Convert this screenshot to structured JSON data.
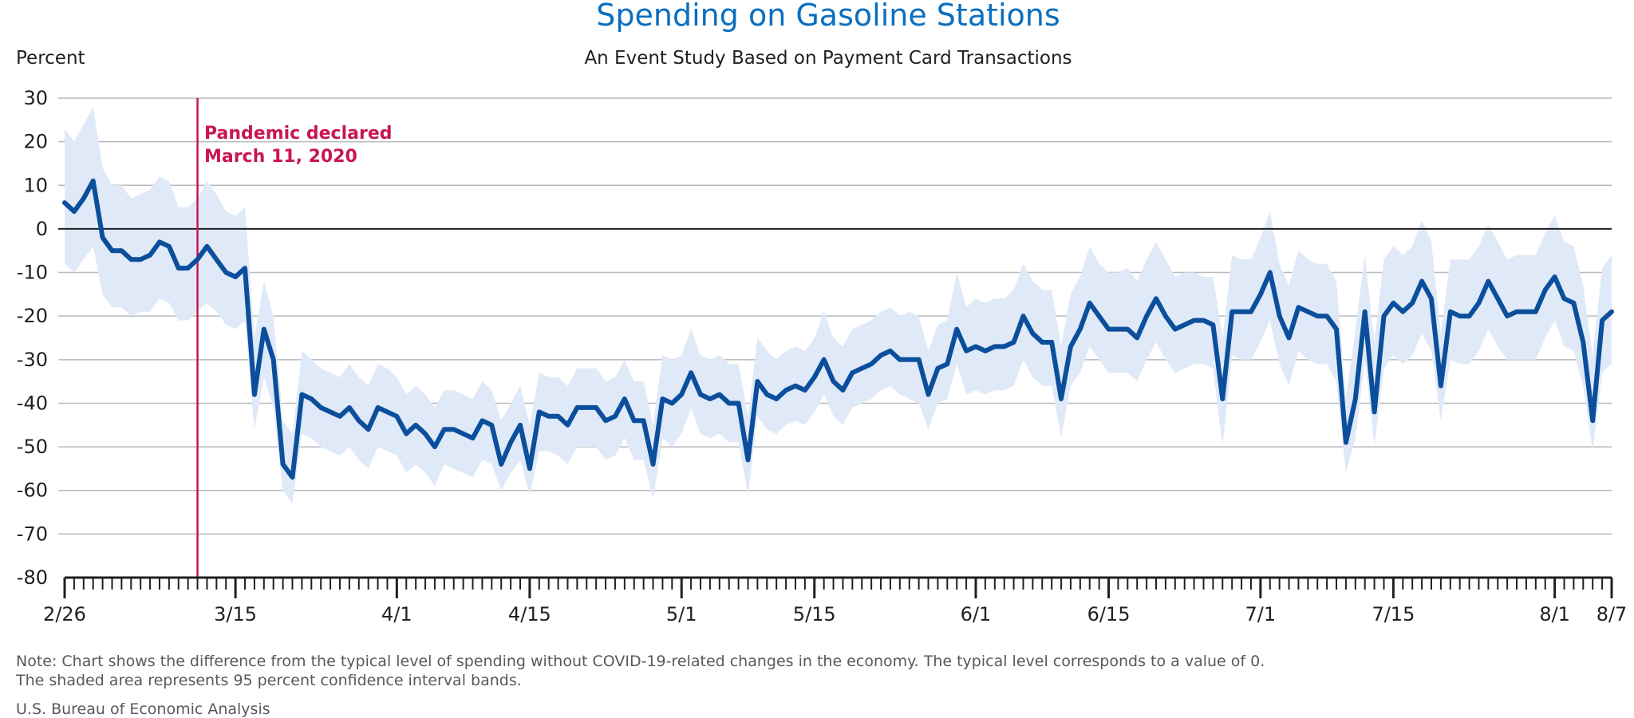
{
  "chart_data": {
    "type": "line",
    "title": "Spending on Gasoline Stations",
    "subtitle": "An Event Study Based on Payment Card Transactions",
    "ylabel": "Percent",
    "xlabel": "",
    "ylim": [
      -80,
      30
    ],
    "yticks": [
      "30",
      "20",
      "10",
      "0",
      "-10",
      "-20",
      "-30",
      "-40",
      "-50",
      "-60",
      "-70",
      "-80"
    ],
    "x_start_date": "2020-02-26",
    "x_end_date": "2020-08-07",
    "x_tick_labels": [
      {
        "date": "2020-02-26",
        "label": "2/26"
      },
      {
        "date": "2020-03-15",
        "label": "3/15"
      },
      {
        "date": "2020-04-01",
        "label": "4/1"
      },
      {
        "date": "2020-04-15",
        "label": "4/15"
      },
      {
        "date": "2020-05-01",
        "label": "5/1"
      },
      {
        "date": "2020-05-15",
        "label": "5/15"
      },
      {
        "date": "2020-06-01",
        "label": "6/1"
      },
      {
        "date": "2020-06-15",
        "label": "6/15"
      },
      {
        "date": "2020-07-01",
        "label": "7/1"
      },
      {
        "date": "2020-07-15",
        "label": "7/15"
      },
      {
        "date": "2020-08-01",
        "label": "8/1"
      },
      {
        "date": "2020-08-07",
        "label": "8/7"
      }
    ],
    "grid": true,
    "zero_line": true,
    "annotation": {
      "date": "2020-03-11",
      "line1": "Pandemic declared",
      "line2": "March 11, 2020",
      "color": "#c8174f"
    },
    "series": [
      {
        "color": "#0b4f9c",
        "values": [
          {
            "date": "2020-02-26",
            "y": 6
          },
          {
            "date": "2020-02-27",
            "y": 4
          },
          {
            "date": "2020-02-28",
            "y": 7
          },
          {
            "date": "2020-02-29",
            "y": 11
          },
          {
            "date": "2020-03-01",
            "y": -2
          },
          {
            "date": "2020-03-02",
            "y": -5
          },
          {
            "date": "2020-03-03",
            "y": -5
          },
          {
            "date": "2020-03-04",
            "y": -7
          },
          {
            "date": "2020-03-05",
            "y": -7
          },
          {
            "date": "2020-03-06",
            "y": -6
          },
          {
            "date": "2020-03-07",
            "y": -3
          },
          {
            "date": "2020-03-08",
            "y": -4
          },
          {
            "date": "2020-03-09",
            "y": -9
          },
          {
            "date": "2020-03-10",
            "y": -9
          },
          {
            "date": "2020-03-11",
            "y": -7
          },
          {
            "date": "2020-03-12",
            "y": -4
          },
          {
            "date": "2020-03-13",
            "y": -7
          },
          {
            "date": "2020-03-14",
            "y": -10
          },
          {
            "date": "2020-03-15",
            "y": -11
          },
          {
            "date": "2020-03-16",
            "y": -9
          },
          {
            "date": "2020-03-17",
            "y": -38
          },
          {
            "date": "2020-03-18",
            "y": -23
          },
          {
            "date": "2020-03-19",
            "y": -30
          },
          {
            "date": "2020-03-20",
            "y": -54
          },
          {
            "date": "2020-03-21",
            "y": -57
          },
          {
            "date": "2020-03-22",
            "y": -38
          },
          {
            "date": "2020-03-23",
            "y": -39
          },
          {
            "date": "2020-03-24",
            "y": -41
          },
          {
            "date": "2020-03-25",
            "y": -42
          },
          {
            "date": "2020-03-26",
            "y": -43
          },
          {
            "date": "2020-03-27",
            "y": -41
          },
          {
            "date": "2020-03-28",
            "y": -44
          },
          {
            "date": "2020-03-29",
            "y": -46
          },
          {
            "date": "2020-03-30",
            "y": -41
          },
          {
            "date": "2020-03-31",
            "y": -42
          },
          {
            "date": "2020-04-01",
            "y": -43
          },
          {
            "date": "2020-04-02",
            "y": -47
          },
          {
            "date": "2020-04-03",
            "y": -45
          },
          {
            "date": "2020-04-04",
            "y": -47
          },
          {
            "date": "2020-04-05",
            "y": -50
          },
          {
            "date": "2020-04-06",
            "y": -46
          },
          {
            "date": "2020-04-07",
            "y": -46
          },
          {
            "date": "2020-04-08",
            "y": -47
          },
          {
            "date": "2020-04-09",
            "y": -48
          },
          {
            "date": "2020-04-10",
            "y": -44
          },
          {
            "date": "2020-04-11",
            "y": -45
          },
          {
            "date": "2020-04-12",
            "y": -54
          },
          {
            "date": "2020-04-13",
            "y": -49
          },
          {
            "date": "2020-04-14",
            "y": -45
          },
          {
            "date": "2020-04-15",
            "y": -55
          },
          {
            "date": "2020-04-16",
            "y": -42
          },
          {
            "date": "2020-04-17",
            "y": -43
          },
          {
            "date": "2020-04-18",
            "y": -43
          },
          {
            "date": "2020-04-19",
            "y": -45
          },
          {
            "date": "2020-04-20",
            "y": -41
          },
          {
            "date": "2020-04-21",
            "y": -41
          },
          {
            "date": "2020-04-22",
            "y": -41
          },
          {
            "date": "2020-04-23",
            "y": -44
          },
          {
            "date": "2020-04-24",
            "y": -43
          },
          {
            "date": "2020-04-25",
            "y": -39
          },
          {
            "date": "2020-04-26",
            "y": -44
          },
          {
            "date": "2020-04-27",
            "y": -44
          },
          {
            "date": "2020-04-28",
            "y": -54
          },
          {
            "date": "2020-04-29",
            "y": -39
          },
          {
            "date": "2020-04-30",
            "y": -40
          },
          {
            "date": "2020-05-01",
            "y": -38
          },
          {
            "date": "2020-05-02",
            "y": -33
          },
          {
            "date": "2020-05-03",
            "y": -38
          },
          {
            "date": "2020-05-04",
            "y": -39
          },
          {
            "date": "2020-05-05",
            "y": -38
          },
          {
            "date": "2020-05-06",
            "y": -40
          },
          {
            "date": "2020-05-07",
            "y": -40
          },
          {
            "date": "2020-05-08",
            "y": -53
          },
          {
            "date": "2020-05-09",
            "y": -35
          },
          {
            "date": "2020-05-10",
            "y": -38
          },
          {
            "date": "2020-05-11",
            "y": -39
          },
          {
            "date": "2020-05-12",
            "y": -37
          },
          {
            "date": "2020-05-13",
            "y": -36
          },
          {
            "date": "2020-05-14",
            "y": -37
          },
          {
            "date": "2020-05-15",
            "y": -34
          },
          {
            "date": "2020-05-16",
            "y": -30
          },
          {
            "date": "2020-05-17",
            "y": -35
          },
          {
            "date": "2020-05-18",
            "y": -37
          },
          {
            "date": "2020-05-19",
            "y": -33
          },
          {
            "date": "2020-05-20",
            "y": -32
          },
          {
            "date": "2020-05-21",
            "y": -31
          },
          {
            "date": "2020-05-22",
            "y": -29
          },
          {
            "date": "2020-05-23",
            "y": -28
          },
          {
            "date": "2020-05-24",
            "y": -30
          },
          {
            "date": "2020-05-25",
            "y": -30
          },
          {
            "date": "2020-05-26",
            "y": -30
          },
          {
            "date": "2020-05-27",
            "y": -38
          },
          {
            "date": "2020-05-28",
            "y": -32
          },
          {
            "date": "2020-05-29",
            "y": -31
          },
          {
            "date": "2020-05-30",
            "y": -23
          },
          {
            "date": "2020-05-31",
            "y": -28
          },
          {
            "date": "2020-06-01",
            "y": -27
          },
          {
            "date": "2020-06-02",
            "y": -28
          },
          {
            "date": "2020-06-03",
            "y": -27
          },
          {
            "date": "2020-06-04",
            "y": -27
          },
          {
            "date": "2020-06-05",
            "y": -26
          },
          {
            "date": "2020-06-06",
            "y": -20
          },
          {
            "date": "2020-06-07",
            "y": -24
          },
          {
            "date": "2020-06-08",
            "y": -26
          },
          {
            "date": "2020-06-09",
            "y": -26
          },
          {
            "date": "2020-06-10",
            "y": -39
          },
          {
            "date": "2020-06-11",
            "y": -27
          },
          {
            "date": "2020-06-12",
            "y": -23
          },
          {
            "date": "2020-06-13",
            "y": -17
          },
          {
            "date": "2020-06-14",
            "y": -20
          },
          {
            "date": "2020-06-15",
            "y": -23
          },
          {
            "date": "2020-06-16",
            "y": -23
          },
          {
            "date": "2020-06-17",
            "y": -23
          },
          {
            "date": "2020-06-18",
            "y": -25
          },
          {
            "date": "2020-06-19",
            "y": -20
          },
          {
            "date": "2020-06-20",
            "y": -16
          },
          {
            "date": "2020-06-21",
            "y": -20
          },
          {
            "date": "2020-06-22",
            "y": -23
          },
          {
            "date": "2020-06-23",
            "y": -22
          },
          {
            "date": "2020-06-24",
            "y": -21
          },
          {
            "date": "2020-06-25",
            "y": -21
          },
          {
            "date": "2020-06-26",
            "y": -22
          },
          {
            "date": "2020-06-27",
            "y": -39
          },
          {
            "date": "2020-06-28",
            "y": -19
          },
          {
            "date": "2020-06-29",
            "y": -19
          },
          {
            "date": "2020-06-30",
            "y": -19
          },
          {
            "date": "2020-07-01",
            "y": -15
          },
          {
            "date": "2020-07-02",
            "y": -10
          },
          {
            "date": "2020-07-03",
            "y": -20
          },
          {
            "date": "2020-07-04",
            "y": -25
          },
          {
            "date": "2020-07-05",
            "y": -18
          },
          {
            "date": "2020-07-06",
            "y": -19
          },
          {
            "date": "2020-07-07",
            "y": -20
          },
          {
            "date": "2020-07-08",
            "y": -20
          },
          {
            "date": "2020-07-09",
            "y": -23
          },
          {
            "date": "2020-07-10",
            "y": -49
          },
          {
            "date": "2020-07-11",
            "y": -39
          },
          {
            "date": "2020-07-12",
            "y": -19
          },
          {
            "date": "2020-07-13",
            "y": -42
          },
          {
            "date": "2020-07-14",
            "y": -20
          },
          {
            "date": "2020-07-15",
            "y": -17
          },
          {
            "date": "2020-07-16",
            "y": -19
          },
          {
            "date": "2020-07-17",
            "y": -17
          },
          {
            "date": "2020-07-18",
            "y": -12
          },
          {
            "date": "2020-07-19",
            "y": -16
          },
          {
            "date": "2020-07-20",
            "y": -36
          },
          {
            "date": "2020-07-21",
            "y": -19
          },
          {
            "date": "2020-07-22",
            "y": -20
          },
          {
            "date": "2020-07-23",
            "y": -20
          },
          {
            "date": "2020-07-24",
            "y": -17
          },
          {
            "date": "2020-07-25",
            "y": -12
          },
          {
            "date": "2020-07-26",
            "y": -16
          },
          {
            "date": "2020-07-27",
            "y": -20
          },
          {
            "date": "2020-07-28",
            "y": -19
          },
          {
            "date": "2020-07-29",
            "y": -19
          },
          {
            "date": "2020-07-30",
            "y": -19
          },
          {
            "date": "2020-07-31",
            "y": -14
          },
          {
            "date": "2020-08-01",
            "y": -11
          },
          {
            "date": "2020-08-02",
            "y": -16
          },
          {
            "date": "2020-08-03",
            "y": -17
          },
          {
            "date": "2020-08-04",
            "y": -26
          },
          {
            "date": "2020-08-05",
            "y": -44
          },
          {
            "date": "2020-08-06",
            "y": -21
          },
          {
            "date": "2020-08-07",
            "y": -19
          }
        ]
      }
    ],
    "confidence_band": {
      "color": "#e0e9f7",
      "upper": [
        23,
        20,
        24,
        28,
        14,
        10,
        10,
        7,
        8,
        9,
        12,
        11,
        5,
        5,
        7,
        11,
        8,
        4,
        3,
        5,
        -25,
        -12,
        -20,
        -44,
        -47,
        -28,
        -30,
        -32,
        -33,
        -34,
        -31,
        -34,
        -36,
        -31,
        -32,
        -34,
        -38,
        -36,
        -38,
        -41,
        -37,
        -37,
        -38,
        -39,
        -35,
        -37,
        -44,
        -40,
        -36,
        -45,
        -33,
        -34,
        -34,
        -36,
        -32,
        -32,
        -32,
        -35,
        -34,
        -30,
        -35,
        -35,
        -45,
        -29,
        -30,
        -29,
        -23,
        -29,
        -30,
        -29,
        -31,
        -31,
        -43,
        -25,
        -28,
        -30,
        -28,
        -27,
        -28,
        -25,
        -19,
        -25,
        -27,
        -23,
        -22,
        -21,
        -19,
        -18,
        -20,
        -19,
        -20,
        -28,
        -22,
        -21,
        -10,
        -18,
        -16,
        -17,
        -16,
        -16,
        -14,
        -8,
        -12,
        -14,
        -14,
        -27,
        -15,
        -11,
        -4,
        -8,
        -10,
        -10,
        -9,
        -12,
        -7,
        -3,
        -7,
        -11,
        -10,
        -10,
        -11,
        -11,
        -25,
        -6,
        -7,
        -7,
        -2,
        4,
        -8,
        -13,
        -5,
        -7,
        -8,
        -8,
        -12,
        -39,
        -23,
        -6,
        -26,
        -7,
        -4,
        -6,
        -4,
        2,
        -3,
        -24,
        -7,
        -7,
        -7,
        -4,
        1,
        -3,
        -7,
        -6,
        -6,
        -6,
        -1,
        3,
        -3,
        -4,
        -13,
        -29,
        -9,
        -6
      ],
      "lower": [
        -8,
        -10,
        -7,
        -4,
        -15,
        -18,
        -18,
        -20,
        -19,
        -19,
        -16,
        -17,
        -21,
        -21,
        -19,
        -17,
        -19,
        -22,
        -23,
        -21,
        -46,
        -34,
        -41,
        -60,
        -63,
        -47,
        -48,
        -50,
        -51,
        -52,
        -50,
        -53,
        -55,
        -50,
        -51,
        -52,
        -56,
        -54,
        -56,
        -59,
        -54,
        -55,
        -56,
        -57,
        -53,
        -54,
        -60,
        -56,
        -53,
        -61,
        -51,
        -51,
        -52,
        -54,
        -50,
        -50,
        -50,
        -53,
        -52,
        -48,
        -53,
        -53,
        -62,
        -48,
        -50,
        -47,
        -41,
        -47,
        -48,
        -47,
        -49,
        -49,
        -61,
        -43,
        -46,
        -47,
        -45,
        -44,
        -45,
        -42,
        -38,
        -43,
        -45,
        -41,
        -40,
        -39,
        -37,
        -36,
        -38,
        -39,
        -40,
        -46,
        -40,
        -39,
        -31,
        -38,
        -37,
        -38,
        -37,
        -37,
        -36,
        -30,
        -34,
        -36,
        -36,
        -48,
        -36,
        -33,
        -27,
        -30,
        -33,
        -33,
        -33,
        -35,
        -30,
        -26,
        -30,
        -33,
        -32,
        -31,
        -31,
        -32,
        -50,
        -29,
        -30,
        -30,
        -26,
        -21,
        -31,
        -36,
        -28,
        -30,
        -31,
        -31,
        -35,
        -56,
        -48,
        -30,
        -50,
        -32,
        -29,
        -31,
        -29,
        -24,
        -28,
        -44,
        -30,
        -31,
        -31,
        -28,
        -23,
        -27,
        -30,
        -30,
        -30,
        -30,
        -25,
        -21,
        -27,
        -28,
        -36,
        -51,
        -33,
        -31
      ]
    }
  },
  "notes": {
    "line1": "Note: Chart shows the difference from the typical level of spending without COVID-19-related changes in the economy. The typical level corresponds to a value of 0.",
    "line2": "The shaded area represents 95 percent confidence interval bands.",
    "source": "U.S. Bureau of Economic Analysis"
  }
}
